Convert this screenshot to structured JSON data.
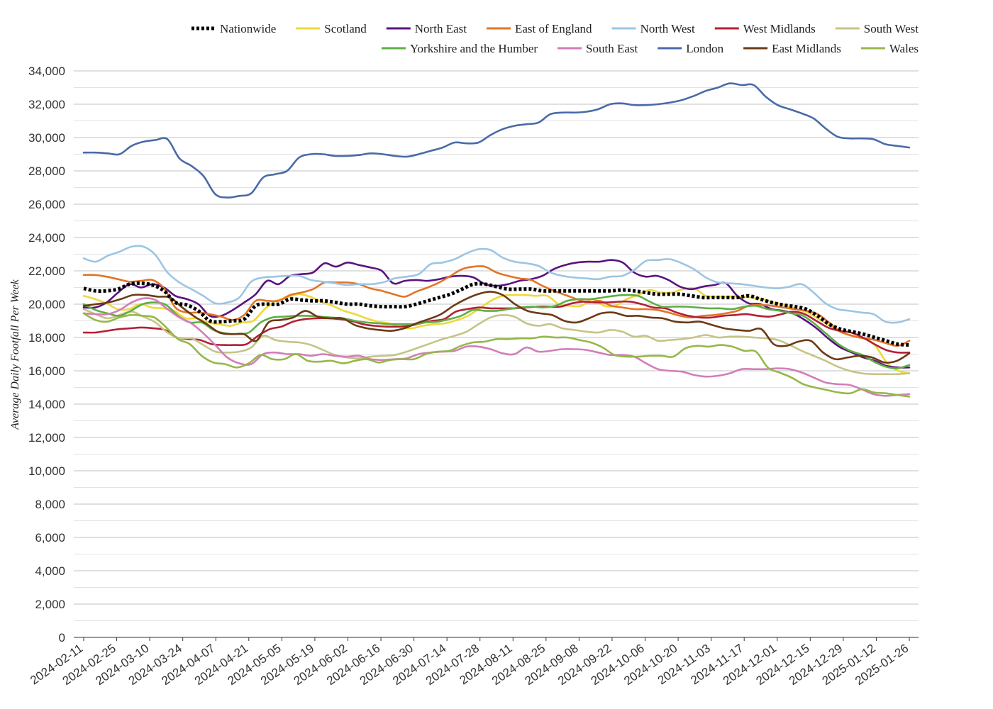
{
  "chart_data": {
    "type": "line",
    "title": "",
    "xlabel": "",
    "ylabel": "Average Daily Footfall Per Week",
    "ylim": [
      0,
      34000
    ],
    "y_ticks": [
      0,
      2000,
      4000,
      6000,
      8000,
      10000,
      12000,
      14000,
      16000,
      18000,
      20000,
      22000,
      24000,
      26000,
      28000,
      30000,
      32000,
      34000
    ],
    "y_tick_labels": [
      "0",
      "2,000",
      "4,000",
      "6,000",
      "8,000",
      "10,000",
      "12,000",
      "14,000",
      "16,000",
      "18,000",
      "20,000",
      "22,000",
      "24,000",
      "26,000",
      "28,000",
      "30,000",
      "32,000",
      "34,000"
    ],
    "x_tick_labels": [
      "2024-02-11",
      "2024-02-25",
      "2024-03-10",
      "2024-03-24",
      "2024-04-07",
      "2024-04-21",
      "2024-05-05",
      "2024-05-19",
      "2024-06-02",
      "2024-06-16",
      "2024-06-30",
      "2024-07-14",
      "2024-07-28",
      "2024-08-11",
      "2024-08-25",
      "2024-09-08",
      "2024-09-22",
      "2024-10-06",
      "2024-10-20",
      "2024-11-03",
      "2024-11-17",
      "2024-12-01",
      "2024-12-15",
      "2024-12-29",
      "2025-01-12",
      "2025-01-26"
    ],
    "x_first": "2024-02-11",
    "x_step_days": 7,
    "grid": true,
    "legend_position": "top",
    "series": [
      {
        "name": "Nationwide",
        "color": "#000000",
        "style": "dotted",
        "values": [
          20950,
          20800,
          20800,
          20900,
          21200,
          21250,
          21150,
          20800,
          20100,
          19950,
          19600,
          19000,
          18950,
          19000,
          19100,
          19900,
          20000,
          20000,
          20300,
          20250,
          20200,
          20200,
          20100,
          20000,
          20000,
          19900,
          19850,
          19850,
          19850,
          20000,
          20200,
          20400,
          20600,
          20900,
          21200,
          21200,
          21050,
          20900,
          20900,
          20900,
          20800,
          20800,
          20800,
          20800,
          20800,
          20800,
          20800,
          20850,
          20800,
          20700,
          20600,
          20600,
          20600,
          20500,
          20400,
          20400,
          20400,
          20400,
          20500,
          20300,
          20100,
          19950,
          19850,
          19700,
          19300,
          18800,
          18500,
          18350,
          18200,
          18000,
          17800,
          17600,
          17550
        ]
      },
      {
        "name": "Scotland",
        "color": "#F0D83A",
        "style": "solid",
        "values": [
          20500,
          20300,
          20050,
          19700,
          19700,
          20000,
          19800,
          19750,
          19600,
          19150,
          19150,
          18900,
          18800,
          18700,
          18900,
          19000,
          19700,
          20200,
          20400,
          20600,
          20450,
          20150,
          19900,
          19600,
          19400,
          19150,
          18950,
          18850,
          18600,
          18550,
          18700,
          18800,
          18850,
          19050,
          19300,
          19750,
          20200,
          20500,
          20550,
          20550,
          20500,
          20500,
          20000,
          19900,
          19900,
          20300,
          19900,
          19900,
          20300,
          20550,
          20850,
          20700,
          20700,
          20900,
          20950,
          20500,
          20450,
          20450,
          20450,
          20400,
          20300,
          20100,
          19950,
          19700,
          19500,
          19100,
          18700,
          18300,
          18100,
          17950,
          17500,
          16500,
          16000,
          15850
        ]
      },
      {
        "name": "North East",
        "color": "#5A137F",
        "style": "solid",
        "values": [
          19800,
          19800,
          20100,
          20700,
          21200,
          21000,
          21200,
          21000,
          20500,
          20300,
          20000,
          19300,
          19300,
          19650,
          20100,
          20600,
          21400,
          21200,
          21700,
          21800,
          21900,
          22450,
          22250,
          22500,
          22350,
          22200,
          22000,
          21250,
          21400,
          21450,
          21400,
          21500,
          21650,
          21700,
          21600,
          21200,
          21100,
          21200,
          21400,
          21500,
          21700,
          22100,
          22350,
          22500,
          22550,
          22550,
          22650,
          22500,
          21900,
          21650,
          21700,
          21450,
          21050,
          20900,
          21050,
          21150,
          21250,
          20500,
          20050,
          20000,
          19700,
          19600,
          19400,
          19000,
          18500,
          17900,
          17400,
          17100,
          16800,
          16600,
          16300,
          16200,
          16200
        ]
      },
      {
        "name": "East of England",
        "color": "#E37427",
        "style": "solid",
        "values": [
          21750,
          21750,
          21650,
          21500,
          21350,
          21400,
          21450,
          20950,
          19800,
          19500,
          19500,
          19400,
          19250,
          19050,
          19350,
          20200,
          20200,
          20200,
          20550,
          20700,
          20900,
          21300,
          21300,
          21300,
          21200,
          20950,
          20800,
          20600,
          20450,
          20750,
          21000,
          21300,
          21700,
          22100,
          22250,
          22250,
          21900,
          21700,
          21550,
          21450,
          21100,
          20800,
          20550,
          20300,
          20100,
          20200,
          19900,
          19800,
          19700,
          19700,
          19650,
          19500,
          19300,
          19200,
          19300,
          19350,
          19450,
          19600,
          19900,
          19950,
          19900,
          19800,
          19700,
          19600,
          19400,
          18900,
          18350,
          18100,
          17950,
          17850,
          17650,
          17500,
          17800
        ]
      },
      {
        "name": "North West",
        "color": "#9DC5E3",
        "style": "solid",
        "values": [
          22750,
          22550,
          22900,
          23150,
          23450,
          23450,
          22950,
          21900,
          21300,
          20900,
          20500,
          20050,
          20100,
          20400,
          21350,
          21600,
          21650,
          21700,
          21700,
          21450,
          21350,
          21250,
          21150,
          21200,
          21200,
          21300,
          21550,
          21650,
          21800,
          22400,
          22500,
          22700,
          23050,
          23300,
          23250,
          22800,
          22550,
          22450,
          22300,
          21900,
          21700,
          21600,
          21550,
          21500,
          21650,
          21700,
          22050,
          22600,
          22650,
          22700,
          22450,
          22100,
          21600,
          21300,
          21250,
          21200,
          21100,
          21000,
          20950,
          21050,
          21200,
          20700,
          20050,
          19700,
          19600,
          19500,
          19400,
          18950,
          18900,
          19100
        ]
      },
      {
        "name": "West Midlands",
        "color": "#B22035",
        "style": "solid",
        "values": [
          18300,
          18300,
          18400,
          18500,
          18550,
          18600,
          18550,
          18450,
          18000,
          17900,
          17850,
          17600,
          17550,
          17550,
          17600,
          18100,
          18500,
          18650,
          18950,
          19100,
          19150,
          19150,
          19100,
          19000,
          18800,
          18700,
          18650,
          18650,
          18700,
          18850,
          19000,
          19100,
          19550,
          19700,
          19800,
          19750,
          19750,
          19750,
          19800,
          19850,
          19850,
          19850,
          20050,
          20150,
          20100,
          20100,
          20150,
          20150,
          20000,
          19800,
          19750,
          19500,
          19300,
          19200,
          19200,
          19300,
          19350,
          19400,
          19300,
          19250,
          19400,
          19550,
          19400,
          19000,
          18600,
          18400,
          18300,
          18000,
          17600,
          17250,
          17100,
          17100
        ]
      },
      {
        "name": "South West",
        "color": "#C5C487",
        "style": "solid",
        "values": [
          19700,
          19400,
          19150,
          19350,
          19550,
          19250,
          18900,
          18300,
          17950,
          17950,
          17550,
          17150,
          17100,
          17150,
          17400,
          18100,
          17850,
          17750,
          17700,
          17550,
          17250,
          16950,
          16800,
          16750,
          16850,
          16900,
          16950,
          17150,
          17400,
          17650,
          17900,
          18100,
          18350,
          18800,
          19200,
          19350,
          19250,
          18850,
          18700,
          18800,
          18550,
          18450,
          18350,
          18300,
          18450,
          18350,
          18050,
          18100,
          17800,
          17850,
          17900,
          18000,
          18150,
          18000,
          18050,
          18050,
          18000,
          17950,
          17850,
          17550,
          17200,
          16900,
          16600,
          16250,
          16000,
          15850,
          15800,
          15800,
          15800,
          15850
        ]
      },
      {
        "name": "Yorkshire and the Humber",
        "color": "#5FAE45",
        "style": "solid",
        "values": [
          20000,
          19650,
          19450,
          19300,
          19600,
          20000,
          20100,
          19950,
          19300,
          18900,
          18900,
          18450,
          18250,
          18200,
          18300,
          18900,
          19200,
          19250,
          19300,
          19300,
          19250,
          19200,
          19150,
          19000,
          18900,
          18850,
          18800,
          18800,
          18800,
          18900,
          18950,
          19100,
          19300,
          19650,
          19600,
          19600,
          19700,
          19800,
          19850,
          19800,
          19900,
          20200,
          20300,
          20300,
          20400,
          20500,
          20550,
          20500,
          20150,
          19850,
          19850,
          19850,
          19800,
          19750,
          19750,
          19700,
          19850,
          19900,
          19700,
          19600,
          19450,
          19300,
          18800,
          18200,
          17600,
          17200,
          16950,
          16550,
          16250,
          16150,
          16350
        ]
      },
      {
        "name": "South East",
        "color": "#D27EB8",
        "style": "solid",
        "values": [
          19450,
          19400,
          19400,
          19650,
          20100,
          20350,
          20250,
          19700,
          19200,
          18850,
          18250,
          17550,
          16800,
          16450,
          16400,
          17000,
          17100,
          17000,
          17000,
          16900,
          17000,
          16900,
          16850,
          16900,
          16700,
          16650,
          16700,
          16750,
          17000,
          17100,
          17150,
          17200,
          17450,
          17450,
          17300,
          17050,
          17000,
          17400,
          17150,
          17200,
          17300,
          17300,
          17250,
          17100,
          16950,
          16950,
          16850,
          16450,
          16100,
          16000,
          15950,
          15750,
          15650,
          15700,
          15850,
          16100,
          16100,
          16100,
          16150,
          16100,
          15900,
          15600,
          15300,
          15200,
          15150,
          14900,
          14600,
          14500,
          14550,
          14600
        ]
      },
      {
        "name": "London",
        "color": "#4A6AA8",
        "style": "solid",
        "values": [
          29100,
          29100,
          29050,
          29000,
          29500,
          29750,
          29850,
          29900,
          28750,
          28300,
          27700,
          26600,
          26400,
          26500,
          26650,
          27600,
          27800,
          28000,
          28800,
          29000,
          29000,
          28900,
          28900,
          28950,
          29050,
          29000,
          28900,
          28850,
          29000,
          29200,
          29400,
          29700,
          29650,
          29700,
          30150,
          30500,
          30700,
          30800,
          30900,
          31400,
          31500,
          31500,
          31550,
          31700,
          32000,
          32050,
          31950,
          31950,
          32000,
          32100,
          32250,
          32500,
          32800,
          33000,
          33250,
          33150,
          33150,
          32450,
          31950,
          31700,
          31450,
          31150,
          30550,
          30050,
          29950,
          29950,
          29900,
          29600,
          29500,
          29400
        ]
      },
      {
        "name": "East Midlands",
        "color": "#6B3A15",
        "style": "solid",
        "values": [
          19900,
          20000,
          20100,
          20300,
          20550,
          20550,
          20450,
          20400,
          19800,
          19250,
          18800,
          18300,
          18200,
          18200,
          17800,
          18900,
          19050,
          19200,
          19600,
          19250,
          19150,
          19150,
          18750,
          18550,
          18450,
          18400,
          18550,
          18850,
          19100,
          19400,
          19900,
          20300,
          20600,
          20750,
          20550,
          20000,
          19600,
          19450,
          19350,
          19000,
          18900,
          19150,
          19450,
          19500,
          19300,
          19300,
          19200,
          19150,
          18950,
          18900,
          18950,
          18750,
          18550,
          18450,
          18400,
          18500,
          17600,
          17500,
          17750,
          17800,
          17100,
          16700,
          16800,
          16900,
          16800,
          16500,
          16600,
          17050
        ]
      },
      {
        "name": "Wales",
        "color": "#95B848",
        "style": "solid",
        "values": [
          19450,
          19050,
          18950,
          19200,
          19350,
          19300,
          19200,
          18600,
          17900,
          17600,
          16900,
          16500,
          16400,
          16200,
          16450,
          16950,
          16700,
          16700,
          17000,
          16600,
          16550,
          16600,
          16450,
          16600,
          16700,
          16500,
          16650,
          16700,
          16700,
          17000,
          17150,
          17200,
          17500,
          17700,
          17750,
          17900,
          17900,
          17950,
          17950,
          18050,
          18000,
          18000,
          17850,
          17700,
          17400,
          16950,
          16850,
          16850,
          16900,
          16900,
          16850,
          17350,
          17500,
          17450,
          17550,
          17450,
          17200,
          17150,
          16200,
          15900,
          15600,
          15200,
          15000,
          14850,
          14700,
          14650,
          14900,
          14700,
          14650,
          14550,
          14450
        ]
      }
    ]
  }
}
